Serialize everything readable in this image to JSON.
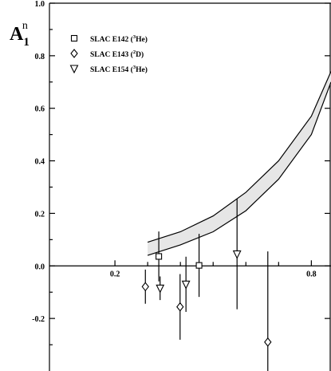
{
  "chart_data": {
    "type": "scatter",
    "ylabel": {
      "base": "A",
      "sub": "1",
      "sup": "n"
    },
    "xlim": [
      0.0,
      0.86
    ],
    "ylim": [
      -0.4,
      1.0
    ],
    "x_ticks": [
      "0.2",
      "0.8"
    ],
    "x_tick_values": [
      0.2,
      0.8
    ],
    "x_minor_ticks": [
      0.3,
      0.4,
      0.5,
      0.6,
      0.7
    ],
    "y_ticks": [
      "1.0",
      "0.8",
      "0.6",
      "0.4",
      "0.2",
      "0.0",
      "-0.2"
    ],
    "y_tick_values": [
      1.0,
      0.8,
      0.6,
      0.4,
      0.2,
      0.0,
      -0.2
    ],
    "legend_position": "top-left",
    "series": [
      {
        "name": "SLAC E142 (3He)",
        "legend": {
          "main": "SLAC E142 (",
          "sup": "3",
          "rest": "He)"
        },
        "marker": "square",
        "points": [
          {
            "x": 0.334,
            "y": 0.036,
            "err": 0.095
          },
          {
            "x": 0.457,
            "y": 0.002,
            "err": 0.12
          }
        ]
      },
      {
        "name": "SLAC E143 (2D)",
        "legend": {
          "main": "SLAC E143 (",
          "sup": "2",
          "rest": "D)"
        },
        "marker": "diamond",
        "points": [
          {
            "x": 0.293,
            "y": -0.079,
            "err": 0.065
          },
          {
            "x": 0.399,
            "y": -0.156,
            "err": 0.125
          },
          {
            "x": 0.667,
            "y": -0.29,
            "err": 0.345
          }
        ]
      },
      {
        "name": "SLAC E154 (3He)",
        "legend": {
          "main": "SLAC E154 (",
          "sup": "3",
          "rest": "He)"
        },
        "marker": "triangle-down",
        "points": [
          {
            "x": 0.338,
            "y": -0.085,
            "err": 0.045
          },
          {
            "x": 0.417,
            "y": -0.07,
            "err": 0.105
          },
          {
            "x": 0.573,
            "y": 0.045,
            "err": 0.21
          }
        ]
      }
    ],
    "band": {
      "fill": "#e6e6e6",
      "upper": [
        [
          0.3,
          0.09
        ],
        [
          0.4,
          0.13
        ],
        [
          0.5,
          0.19
        ],
        [
          0.6,
          0.28
        ],
        [
          0.7,
          0.4
        ],
        [
          0.8,
          0.57
        ],
        [
          0.86,
          0.74
        ]
      ],
      "lower": [
        [
          0.3,
          0.04
        ],
        [
          0.4,
          0.08
        ],
        [
          0.5,
          0.13
        ],
        [
          0.6,
          0.21
        ],
        [
          0.7,
          0.33
        ],
        [
          0.8,
          0.5
        ],
        [
          0.86,
          0.7
        ]
      ]
    }
  }
}
